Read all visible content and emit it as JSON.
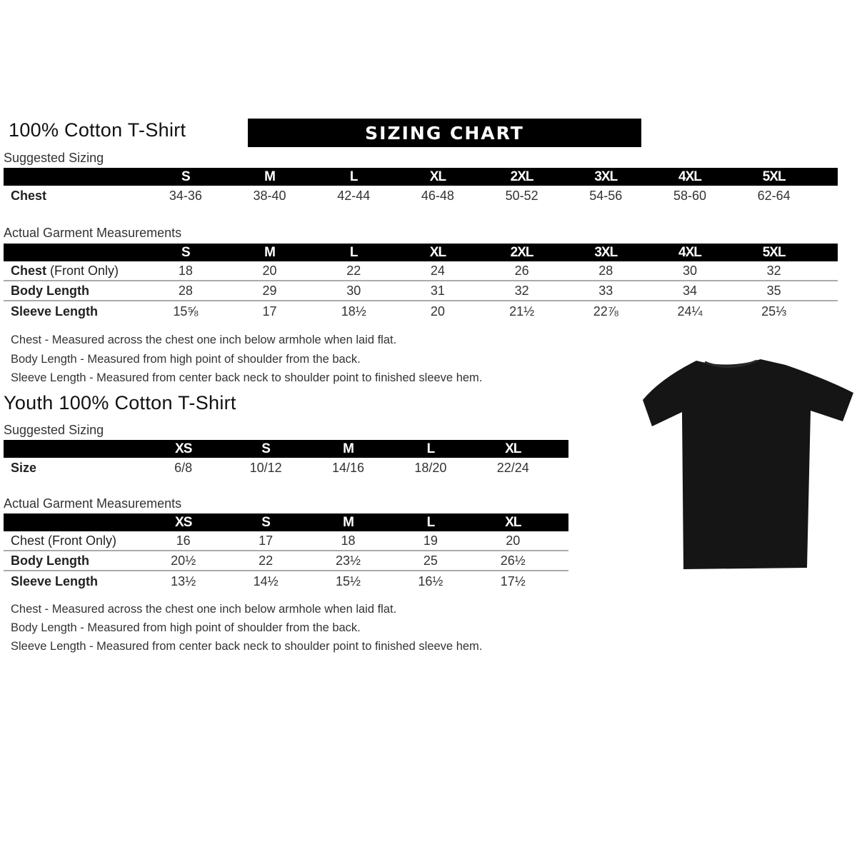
{
  "adult": {
    "title": "100% Cotton T-Shirt",
    "banner": "SIZING CHART",
    "suggested": {
      "label": "Suggested Sizing",
      "sizes": [
        "S",
        "M",
        "L",
        "XL",
        "2XL",
        "3XL",
        "4XL",
        "5XL"
      ],
      "rows": [
        {
          "label": "Chest",
          "values": [
            "34-36",
            "38-40",
            "42-44",
            "46-48",
            "50-52",
            "54-56",
            "58-60",
            "62-64"
          ]
        }
      ]
    },
    "actual": {
      "label": "Actual Garment Measurements",
      "sizes": [
        "S",
        "M",
        "L",
        "XL",
        "2XL",
        "3XL",
        "4XL",
        "5XL"
      ],
      "rows": [
        {
          "label": "Chest",
          "label_note": "(Front Only)",
          "values": [
            "18",
            "20",
            "22",
            "24",
            "26",
            "28",
            "30",
            "32"
          ]
        },
        {
          "label": "Body Length",
          "values": [
            "28",
            "29",
            "30",
            "31",
            "32",
            "33",
            "34",
            "35"
          ]
        },
        {
          "label": "Sleeve Length",
          "values": [
            "15⅝",
            "17",
            "18½",
            "20",
            "21½",
            "22⅞",
            "24¼",
            "25⅓"
          ]
        }
      ]
    },
    "notes": [
      "Chest - Measured across the chest one inch below armhole when laid flat.",
      "Body Length - Measured from high point of shoulder from the back.",
      "Sleeve Length - Measured from center back neck to shoulder point to finished sleeve hem."
    ]
  },
  "youth": {
    "title": "Youth 100% Cotton T-Shirt",
    "suggested": {
      "label": "Suggested Sizing",
      "sizes": [
        "XS",
        "S",
        "M",
        "L",
        "XL"
      ],
      "rows": [
        {
          "label": "Size",
          "values": [
            "6/8",
            "10/12",
            "14/16",
            "18/20",
            "22/24"
          ]
        }
      ]
    },
    "actual": {
      "label": "Actual Garment Measurements",
      "sizes": [
        "XS",
        "S",
        "M",
        "L",
        "XL"
      ],
      "rows": [
        {
          "label": "Chest (Front Only)",
          "values": [
            "16",
            "17",
            "18",
            "19",
            "20"
          ]
        },
        {
          "label": "Body Length",
          "values": [
            "20½",
            "22",
            "23½",
            "25",
            "26½"
          ]
        },
        {
          "label": "Sleeve Length",
          "values": [
            "13½",
            "14½",
            "15½",
            "16½",
            "17½"
          ]
        }
      ]
    },
    "notes": [
      "Chest - Measured across the chest one inch below armhole when laid flat.",
      "Body Length - Measured from high point of shoulder from the back.",
      "Sleeve Length - Measured from center back neck to shoulder point to finished sleeve hem."
    ]
  },
  "tshirt_color": "#151515"
}
